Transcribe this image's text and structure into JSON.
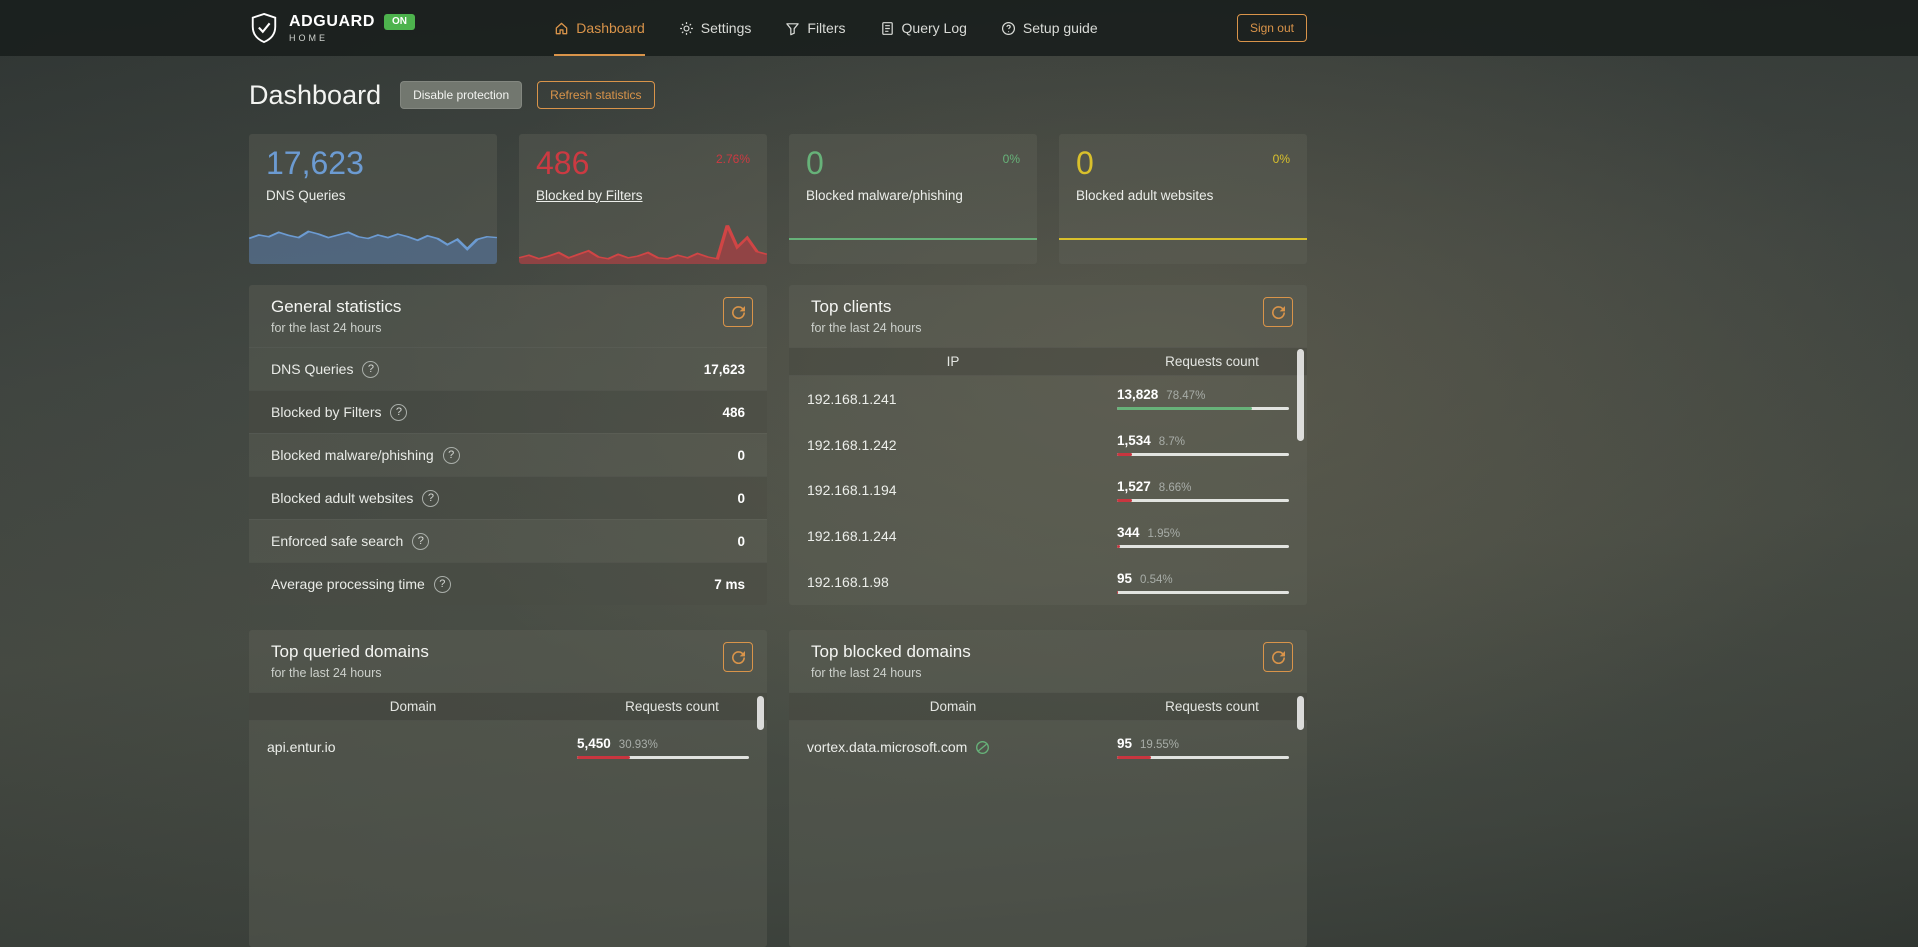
{
  "colors": {
    "accent": "#d9944a",
    "on_badge": "#4db34d",
    "bar_track": "#edeeec"
  },
  "navbar": {
    "brand_title": "ADGUARD",
    "brand_subtitle": "HOME",
    "status_badge": "ON",
    "items": [
      {
        "label": "Dashboard",
        "icon": "dashboard-icon",
        "active": true
      },
      {
        "label": "Settings",
        "icon": "gear-icon",
        "active": false
      },
      {
        "label": "Filters",
        "icon": "filter-funnel-icon",
        "active": false
      },
      {
        "label": "Query Log",
        "icon": "query-log-icon",
        "active": false
      },
      {
        "label": "Setup guide",
        "icon": "setup-guide-icon",
        "active": false
      }
    ],
    "sign_out_label": "Sign out"
  },
  "page": {
    "title": "Dashboard",
    "disable_protection_label": "Disable protection",
    "refresh_statistics_label": "Refresh statistics"
  },
  "stat_cards": [
    {
      "label": "DNS Queries",
      "value": "17,623",
      "percent": "",
      "color": "#6c9bd2",
      "line": "#6c9bd2",
      "fill": "rgba(86,120,168,0.55)",
      "spark": [
        58,
        66,
        62,
        72,
        65,
        60,
        74,
        68,
        60,
        66,
        72,
        62,
        58,
        66,
        60,
        68,
        62,
        54,
        64,
        58,
        44,
        56,
        34,
        56,
        62,
        60
      ]
    },
    {
      "label": "Blocked by Filters",
      "value": "486",
      "percent": "2.76%",
      "color": "#cc3a42",
      "line": "#d04545",
      "fill": "rgba(196,54,64,0.55)",
      "spark": [
        14,
        20,
        12,
        18,
        26,
        14,
        22,
        30,
        16,
        12,
        22,
        14,
        18,
        26,
        14,
        12,
        20,
        14,
        24,
        16,
        12,
        88,
        38,
        60,
        28,
        22
      ]
    },
    {
      "label": "Blocked malware/phishing",
      "value": "0",
      "percent": "0%",
      "color": "#67b279"
    },
    {
      "label": "Blocked adult websites",
      "value": "0",
      "percent": "0%",
      "color": "#d9c02c"
    }
  ],
  "general_statistics": {
    "title": "General statistics",
    "subtitle": "for the last 24 hours",
    "rows": [
      {
        "label": "DNS Queries",
        "value": "17,623"
      },
      {
        "label": "Blocked by Filters",
        "value": "486"
      },
      {
        "label": "Blocked malware/phishing",
        "value": "0"
      },
      {
        "label": "Blocked adult websites",
        "value": "0"
      },
      {
        "label": "Enforced safe search",
        "value": "0"
      },
      {
        "label": "Average processing time",
        "value": "7 ms"
      }
    ]
  },
  "top_clients": {
    "title": "Top clients",
    "subtitle": "for the last 24 hours",
    "col_ip": "IP",
    "col_count": "Requests count",
    "rows": [
      {
        "ip": "192.168.1.241",
        "count": "13,828",
        "percent": "78.47%",
        "fill": 78.47,
        "bar_color": "#67b279"
      },
      {
        "ip": "192.168.1.242",
        "count": "1,534",
        "percent": "8.7%",
        "fill": 8.7,
        "bar_color": "#c9353f"
      },
      {
        "ip": "192.168.1.194",
        "count": "1,527",
        "percent": "8.66%",
        "fill": 8.66,
        "bar_color": "#c9353f"
      },
      {
        "ip": "192.168.1.244",
        "count": "344",
        "percent": "1.95%",
        "fill": 1.95,
        "bar_color": "#c9353f"
      },
      {
        "ip": "192.168.1.98",
        "count": "95",
        "percent": "0.54%",
        "fill": 0.54,
        "bar_color": "#c9353f"
      }
    ]
  },
  "top_queried_domains": {
    "title": "Top queried domains",
    "subtitle": "for the last 24 hours",
    "col_domain": "Domain",
    "col_count": "Requests count",
    "rows": [
      {
        "domain": "api.entur.io",
        "count": "5,450",
        "percent": "30.93%",
        "fill": 30.93,
        "bar_color": "#c9353f"
      }
    ]
  },
  "top_blocked_domains": {
    "title": "Top blocked domains",
    "subtitle": "for the last 24 hours",
    "col_domain": "Domain",
    "col_count": "Requests count",
    "rows": [
      {
        "domain": "vortex.data.microsoft.com",
        "count": "95",
        "percent": "19.55%",
        "fill": 19.55,
        "bar_color": "#c9353f"
      }
    ]
  }
}
